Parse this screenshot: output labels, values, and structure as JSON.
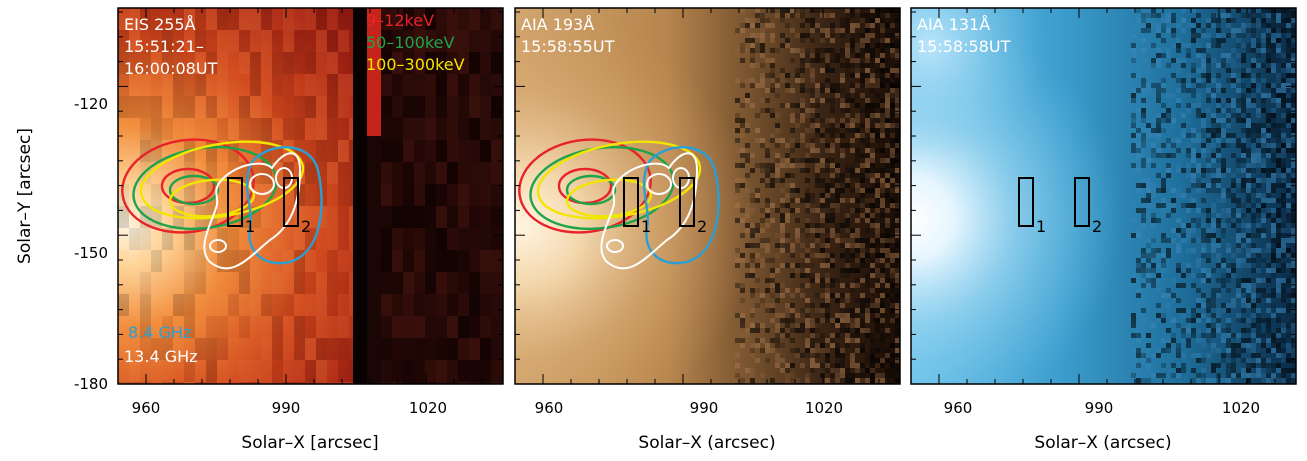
{
  "panels": [
    {
      "id": "eis",
      "colormap": "heat",
      "annotations": [
        "EIS 255Å",
        "15:51:21–",
        "16:00:08UT"
      ],
      "annotation_color": "#ffffff",
      "legend": [
        {
          "text": "9–12keV",
          "color": "#e8222a"
        },
        {
          "text": "50–100keV",
          "color": "#1ea34a"
        },
        {
          "text": "100–300keV",
          "color": "#f2e600"
        }
      ],
      "radio_legend": [
        {
          "text": "8.4 GHz",
          "color": "#2a9fd6"
        },
        {
          "text": "13.4 GHz",
          "color": "#ffffff"
        }
      ],
      "xlabel": "Solar–X [arcsec]",
      "ylabel": "Solar–Y [arcsec]",
      "boxes": [
        "1",
        "2"
      ]
    },
    {
      "id": "aia193",
      "colormap": "brown",
      "annotations": [
        "AIA 193Å",
        "15:58:55UT"
      ],
      "annotation_color": "#ffffff",
      "xlabel": "Solar–X (arcsec)",
      "boxes": [
        "1",
        "2"
      ]
    },
    {
      "id": "aia131",
      "colormap": "teal",
      "annotations": [
        "AIA 131Å",
        "15:58:58UT"
      ],
      "annotation_color": "#ffffff",
      "xlabel": "Solar–X (arcsec)",
      "boxes": [
        "1",
        "2"
      ]
    }
  ],
  "x_ticks": [
    "960",
    "990",
    "1020"
  ],
  "y_ticks": [
    "-120",
    "-150",
    "-180"
  ],
  "x_range": [
    950,
    1035
  ],
  "y_range": [
    -180,
    -102
  ],
  "contour_colors": {
    "red": "#e8222a",
    "green": "#1ea34a",
    "yellow": "#f2e600",
    "blue": "#2a9fd6",
    "white": "#ffffff"
  }
}
